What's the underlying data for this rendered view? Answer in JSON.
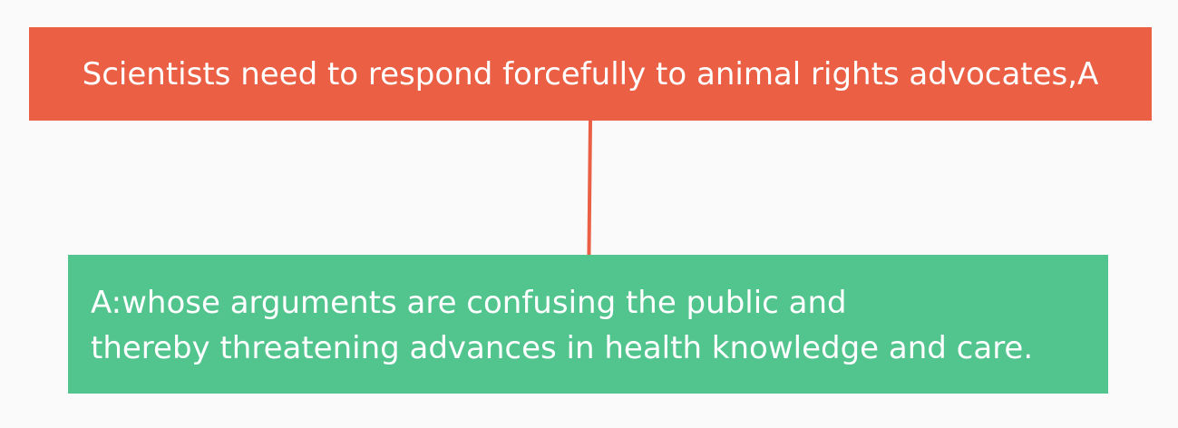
{
  "colors": {
    "background": "#fbfafb",
    "root_fill": "#eb5f45",
    "child_fill": "#52c48d",
    "connector": "#eb5f45",
    "text": "#ffffff"
  },
  "diagram": {
    "root": {
      "text": "Scientists need to respond forcefully to animal rights advocates,A"
    },
    "child": {
      "lines": [
        "A:whose arguments are confusing the public and",
        "thereby threatening advances in health knowledge and care."
      ]
    }
  }
}
